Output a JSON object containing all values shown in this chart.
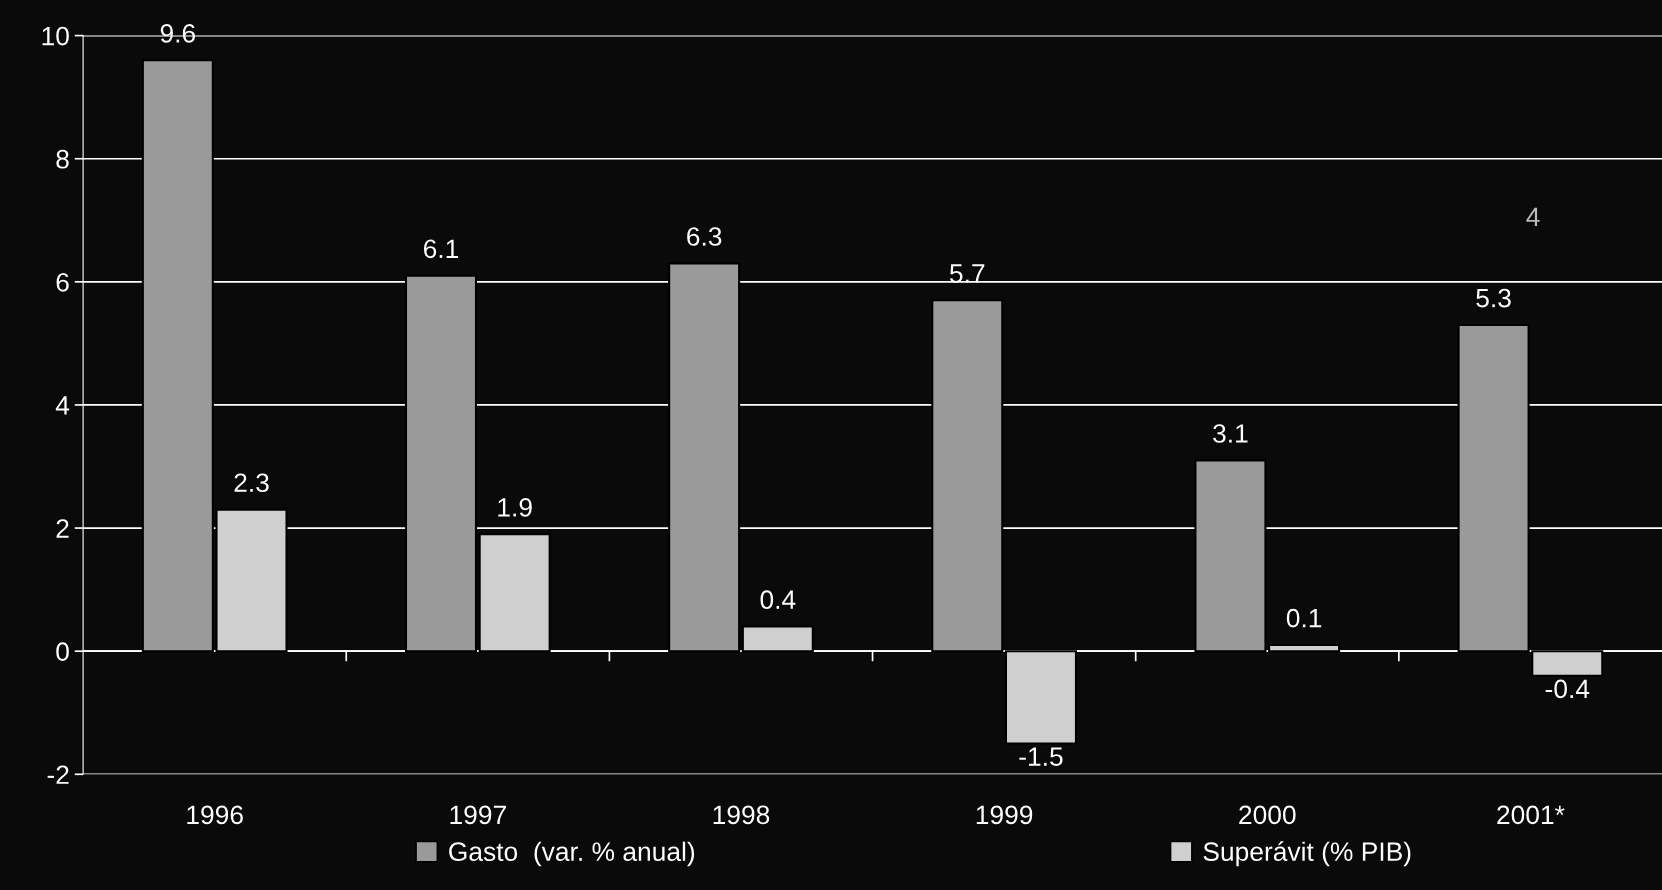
{
  "chart_data": {
    "type": "bar",
    "categories": [
      "1996",
      "1997",
      "1998",
      "1999",
      "2000",
      "2001*"
    ],
    "series": [
      {
        "name": "Gasto  (var. % anual)",
        "color": "#9a9a9a",
        "values": [
          9.6,
          6.1,
          6.3,
          5.7,
          3.1,
          5.3
        ]
      },
      {
        "name": "Superávit (% PIB)",
        "color": "#cfcfcf",
        "values": [
          2.3,
          1.9,
          0.4,
          -1.5,
          0.1,
          -0.4
        ]
      }
    ],
    "ylim": [
      -2,
      10
    ],
    "yticks": [
      -2,
      0,
      2,
      4,
      6,
      8,
      10
    ],
    "grid": "y",
    "legend": "bottom",
    "data_labels": true,
    "annotations": [
      "4"
    ]
  }
}
